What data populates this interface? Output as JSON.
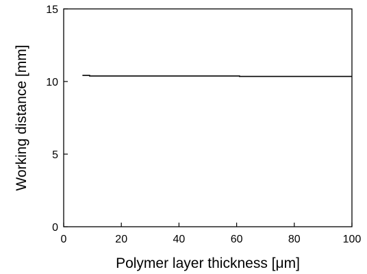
{
  "chart_data": {
    "type": "line",
    "xlabel": "Polymer layer thickness [μm]",
    "ylabel": "Working distance [mm]",
    "xlim": [
      0,
      100
    ],
    "ylim": [
      0,
      15
    ],
    "x_ticks": [
      0,
      20,
      40,
      60,
      80,
      100
    ],
    "y_ticks": [
      0,
      5,
      10,
      15
    ],
    "grid": false,
    "legend": "none",
    "series": [
      {
        "color": "#000000",
        "points": [
          [
            6.5,
            10.42
          ],
          [
            9,
            10.42
          ],
          [
            9,
            10.38
          ],
          [
            61,
            10.38
          ],
          [
            61,
            10.35
          ],
          [
            100,
            10.35
          ]
        ]
      }
    ]
  }
}
